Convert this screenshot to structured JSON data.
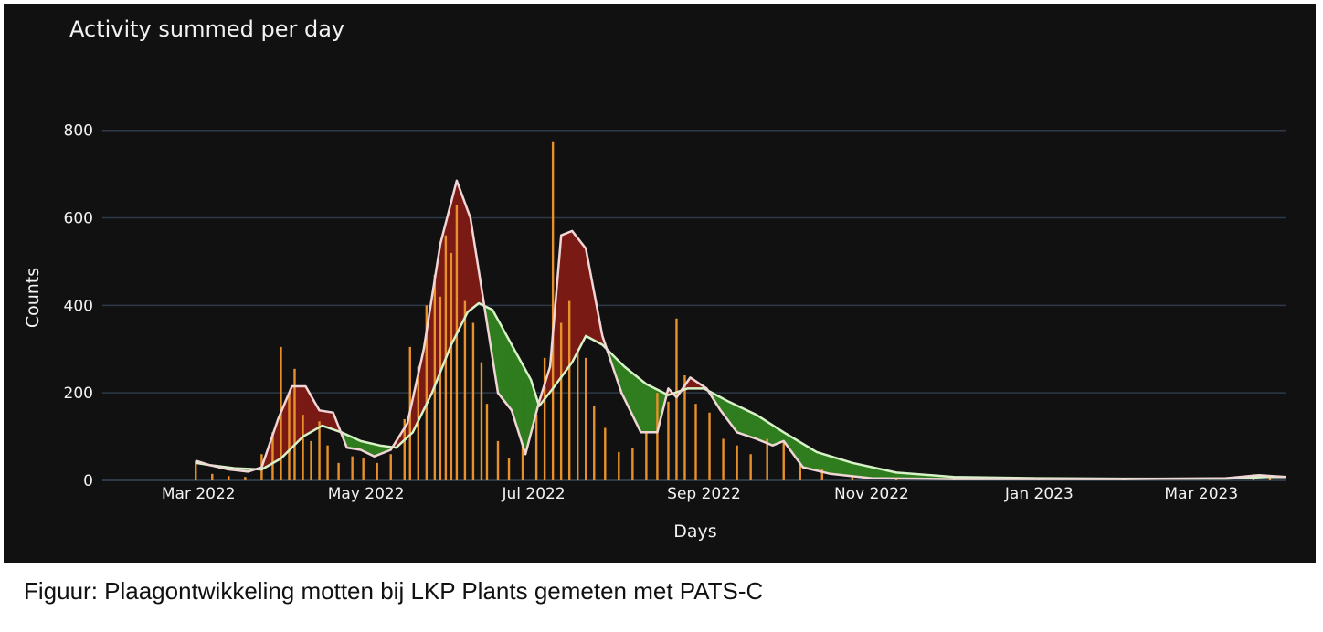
{
  "caption": "Figuur: Plaagontwikkeling motten bij LKP Plants gemeten met PATS-C",
  "colors": {
    "background": "#111111",
    "grid": "#2e3a48",
    "bars": "#e8912c",
    "fill_above": "#7a1a14",
    "fill_below": "#2f7d1e",
    "line_fast": "#f0d6d6",
    "line_slow": "#d8f2c8",
    "text": "#f2f2f2"
  },
  "chart_data": {
    "type": "bar",
    "title": "Activity summed per day",
    "xlabel": "Days",
    "ylabel": "Counts",
    "xlim": [
      "2022-01-25",
      "2023-04-01"
    ],
    "ylim": [
      0,
      860
    ],
    "yticks": [
      0,
      200,
      400,
      600,
      800
    ],
    "xticks": [
      {
        "date": "2022-03-01",
        "label": "Mar 2022"
      },
      {
        "date": "2022-05-01",
        "label": "May 2022"
      },
      {
        "date": "2022-07-01",
        "label": "Jul 2022"
      },
      {
        "date": "2022-09-01",
        "label": "Sep 2022"
      },
      {
        "date": "2022-11-01",
        "label": "Nov 2022"
      },
      {
        "date": "2023-01-01",
        "label": "Jan 2023"
      },
      {
        "date": "2023-03-01",
        "label": "Mar 2023"
      }
    ],
    "grid": true,
    "legend": "none",
    "series": [
      {
        "kind": "bar",
        "points": [
          [
            "2022-02-28",
            45
          ],
          [
            "2022-03-06",
            15
          ],
          [
            "2022-03-12",
            10
          ],
          [
            "2022-03-18",
            8
          ],
          [
            "2022-03-24",
            60
          ],
          [
            "2022-03-28",
            110
          ],
          [
            "2022-03-31",
            305
          ],
          [
            "2022-04-03",
            200
          ],
          [
            "2022-04-05",
            255
          ],
          [
            "2022-04-08",
            150
          ],
          [
            "2022-04-11",
            90
          ],
          [
            "2022-04-14",
            135
          ],
          [
            "2022-04-17",
            80
          ],
          [
            "2022-04-21",
            40
          ],
          [
            "2022-04-26",
            55
          ],
          [
            "2022-04-30",
            50
          ],
          [
            "2022-05-05",
            40
          ],
          [
            "2022-05-10",
            60
          ],
          [
            "2022-05-15",
            140
          ],
          [
            "2022-05-17",
            305
          ],
          [
            "2022-05-20",
            260
          ],
          [
            "2022-05-23",
            400
          ],
          [
            "2022-05-26",
            470
          ],
          [
            "2022-05-28",
            420
          ],
          [
            "2022-05-30",
            560
          ],
          [
            "2022-06-01",
            520
          ],
          [
            "2022-06-03",
            630
          ],
          [
            "2022-06-06",
            410
          ],
          [
            "2022-06-09",
            360
          ],
          [
            "2022-06-12",
            270
          ],
          [
            "2022-06-14",
            175
          ],
          [
            "2022-06-18",
            90
          ],
          [
            "2022-06-22",
            50
          ],
          [
            "2022-06-27",
            80
          ],
          [
            "2022-07-02",
            150
          ],
          [
            "2022-07-05",
            280
          ],
          [
            "2022-07-08",
            775
          ],
          [
            "2022-07-11",
            360
          ],
          [
            "2022-07-14",
            410
          ],
          [
            "2022-07-17",
            300
          ],
          [
            "2022-07-20",
            280
          ],
          [
            "2022-07-23",
            170
          ],
          [
            "2022-07-27",
            120
          ],
          [
            "2022-08-01",
            65
          ],
          [
            "2022-08-06",
            75
          ],
          [
            "2022-08-11",
            110
          ],
          [
            "2022-08-15",
            200
          ],
          [
            "2022-08-19",
            180
          ],
          [
            "2022-08-22",
            370
          ],
          [
            "2022-08-25",
            240
          ],
          [
            "2022-08-29",
            175
          ],
          [
            "2022-09-03",
            155
          ],
          [
            "2022-09-08",
            95
          ],
          [
            "2022-09-13",
            80
          ],
          [
            "2022-09-18",
            60
          ],
          [
            "2022-09-24",
            95
          ],
          [
            "2022-09-30",
            90
          ],
          [
            "2022-10-06",
            35
          ],
          [
            "2022-10-14",
            25
          ],
          [
            "2022-10-25",
            12
          ],
          [
            "2022-11-10",
            6
          ],
          [
            "2022-12-01",
            5
          ],
          [
            "2023-01-01",
            4
          ],
          [
            "2023-02-01",
            4
          ],
          [
            "2023-03-20",
            14
          ],
          [
            "2023-03-26",
            12
          ]
        ]
      },
      {
        "kind": "line",
        "role": "fast-average",
        "points": [
          [
            "2022-02-28",
            45
          ],
          [
            "2022-03-05",
            35
          ],
          [
            "2022-03-12",
            25
          ],
          [
            "2022-03-19",
            20
          ],
          [
            "2022-03-24",
            30
          ],
          [
            "2022-03-30",
            140
          ],
          [
            "2022-04-04",
            215
          ],
          [
            "2022-04-09",
            215
          ],
          [
            "2022-04-14",
            160
          ],
          [
            "2022-04-19",
            155
          ],
          [
            "2022-04-24",
            75
          ],
          [
            "2022-04-29",
            70
          ],
          [
            "2022-05-04",
            55
          ],
          [
            "2022-05-10",
            70
          ],
          [
            "2022-05-16",
            130
          ],
          [
            "2022-05-22",
            300
          ],
          [
            "2022-05-28",
            540
          ],
          [
            "2022-06-03",
            685
          ],
          [
            "2022-06-08",
            600
          ],
          [
            "2022-06-13",
            400
          ],
          [
            "2022-06-18",
            200
          ],
          [
            "2022-06-23",
            160
          ],
          [
            "2022-06-28",
            60
          ],
          [
            "2022-07-03",
            180
          ],
          [
            "2022-07-07",
            260
          ],
          [
            "2022-07-11",
            560
          ],
          [
            "2022-07-15",
            570
          ],
          [
            "2022-07-20",
            530
          ],
          [
            "2022-07-26",
            330
          ],
          [
            "2022-08-02",
            200
          ],
          [
            "2022-08-09",
            110
          ],
          [
            "2022-08-15",
            110
          ],
          [
            "2022-08-19",
            210
          ],
          [
            "2022-08-22",
            190
          ],
          [
            "2022-08-27",
            235
          ],
          [
            "2022-09-02",
            210
          ],
          [
            "2022-09-07",
            160
          ],
          [
            "2022-09-13",
            110
          ],
          [
            "2022-09-20",
            95
          ],
          [
            "2022-09-26",
            80
          ],
          [
            "2022-09-30",
            90
          ],
          [
            "2022-10-07",
            30
          ],
          [
            "2022-10-17",
            15
          ],
          [
            "2022-11-01",
            5
          ],
          [
            "2022-12-01",
            3
          ],
          [
            "2023-01-01",
            3
          ],
          [
            "2023-02-01",
            3
          ],
          [
            "2023-03-10",
            5
          ],
          [
            "2023-03-22",
            12
          ],
          [
            "2023-04-01",
            8
          ]
        ]
      },
      {
        "kind": "line",
        "role": "slow-average",
        "points": [
          [
            "2022-02-28",
            40
          ],
          [
            "2022-03-05",
            35
          ],
          [
            "2022-03-14",
            28
          ],
          [
            "2022-03-24",
            25
          ],
          [
            "2022-03-31",
            50
          ],
          [
            "2022-04-08",
            100
          ],
          [
            "2022-04-15",
            125
          ],
          [
            "2022-04-22",
            110
          ],
          [
            "2022-04-29",
            90
          ],
          [
            "2022-05-06",
            80
          ],
          [
            "2022-05-12",
            75
          ],
          [
            "2022-05-18",
            110
          ],
          [
            "2022-05-25",
            200
          ],
          [
            "2022-06-01",
            310
          ],
          [
            "2022-06-07",
            385
          ],
          [
            "2022-06-11",
            405
          ],
          [
            "2022-06-16",
            390
          ],
          [
            "2022-06-23",
            310
          ],
          [
            "2022-06-30",
            230
          ],
          [
            "2022-07-03",
            170
          ],
          [
            "2022-07-08",
            210
          ],
          [
            "2022-07-15",
            270
          ],
          [
            "2022-07-20",
            330
          ],
          [
            "2022-07-26",
            310
          ],
          [
            "2022-08-03",
            260
          ],
          [
            "2022-08-11",
            220
          ],
          [
            "2022-08-19",
            195
          ],
          [
            "2022-08-26",
            210
          ],
          [
            "2022-09-01",
            210
          ],
          [
            "2022-09-10",
            180
          ],
          [
            "2022-09-20",
            150
          ],
          [
            "2022-09-30",
            110
          ],
          [
            "2022-10-12",
            65
          ],
          [
            "2022-10-25",
            40
          ],
          [
            "2022-11-10",
            18
          ],
          [
            "2022-12-01",
            8
          ],
          [
            "2023-01-01",
            5
          ],
          [
            "2023-02-01",
            4
          ],
          [
            "2023-03-10",
            4
          ],
          [
            "2023-03-25",
            8
          ],
          [
            "2023-04-01",
            8
          ]
        ]
      }
    ]
  }
}
